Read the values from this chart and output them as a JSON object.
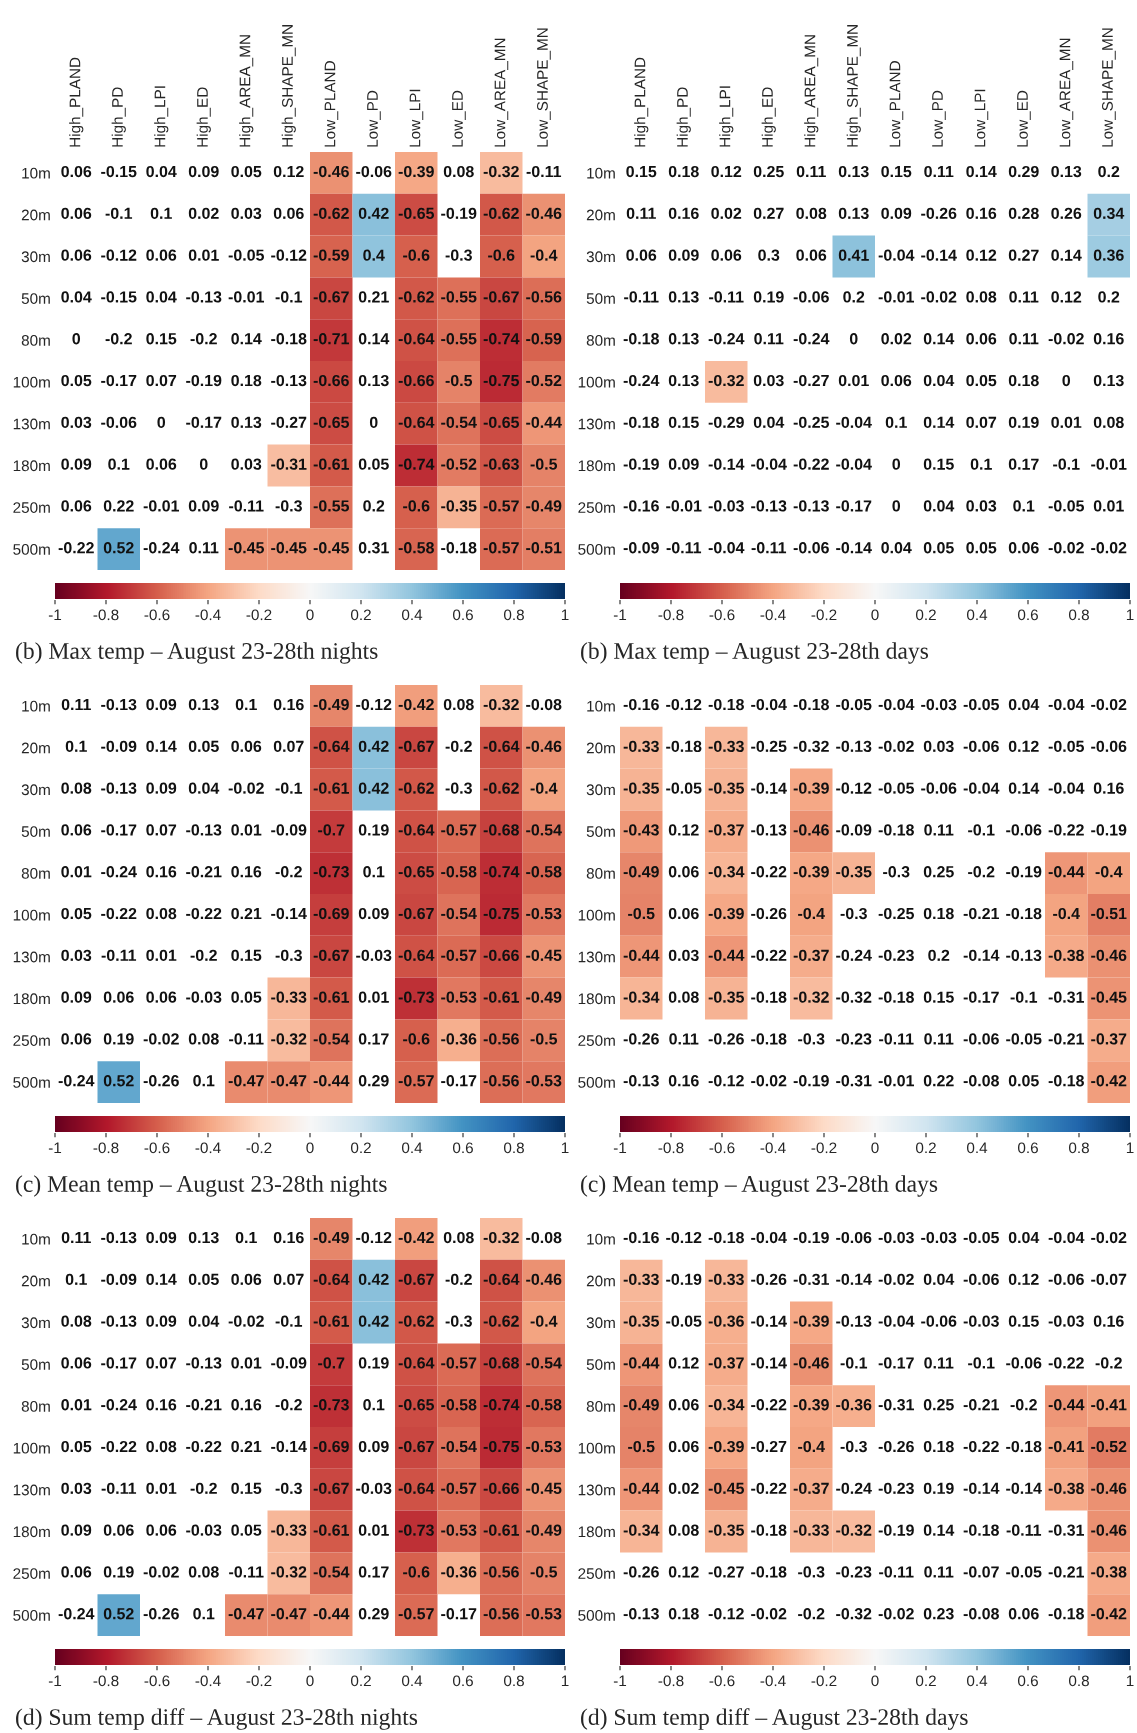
{
  "chart_data": [
    {
      "type": "heatmap",
      "title": "(b) Max temp – August 23-28th nights",
      "categories": [
        "High_PLAND",
        "High_PD",
        "High_LPI",
        "High_ED",
        "High_AREA_MN",
        "High_SHAPE_MN",
        "Low_PLAND",
        "Low_PD",
        "Low_LPI",
        "Low_ED",
        "Low_AREA_MN",
        "Low_SHAPE_MN"
      ],
      "y_categories": [
        "10m",
        "20m",
        "30m",
        "50m",
        "80m",
        "100m",
        "130m",
        "180m",
        "250m",
        "500m"
      ],
      "cells": [
        [
          null,
          null,
          null,
          null,
          null,
          null,
          -0.46,
          null,
          -0.39,
          null,
          -0.32,
          null
        ],
        [
          null,
          null,
          null,
          null,
          null,
          null,
          -0.62,
          0.42,
          -0.65,
          null,
          -0.62,
          -0.46
        ],
        [
          null,
          null,
          null,
          null,
          null,
          null,
          -0.59,
          0.4,
          -0.6,
          null,
          -0.6,
          -0.4
        ],
        [
          null,
          null,
          null,
          null,
          null,
          null,
          -0.67,
          null,
          -0.62,
          -0.55,
          -0.67,
          -0.56
        ],
        [
          null,
          null,
          null,
          null,
          null,
          null,
          -0.71,
          null,
          -0.64,
          -0.55,
          -0.74,
          -0.59
        ],
        [
          null,
          null,
          null,
          null,
          null,
          null,
          -0.66,
          null,
          -0.66,
          -0.5,
          -0.75,
          -0.52
        ],
        [
          null,
          null,
          null,
          null,
          null,
          null,
          -0.65,
          null,
          -0.64,
          -0.54,
          -0.65,
          -0.44
        ],
        [
          null,
          null,
          null,
          null,
          null,
          -0.31,
          -0.61,
          null,
          -0.74,
          -0.52,
          -0.63,
          -0.5
        ],
        [
          null,
          null,
          null,
          null,
          null,
          null,
          -0.55,
          null,
          -0.6,
          -0.35,
          -0.57,
          -0.49
        ],
        [
          null,
          0.52,
          null,
          null,
          -0.45,
          -0.45,
          -0.45,
          null,
          -0.58,
          null,
          -0.57,
          -0.51
        ]
      ],
      "cell_labels": [
        [
          "0.06",
          "-0.15",
          "0.04",
          "0.09",
          "0.05",
          "0.12",
          "-0.46",
          "-0.06",
          "-0.39",
          "0.08",
          "-0.32",
          "-0.11"
        ],
        [
          "0.06",
          "-0.1",
          "0.1",
          "0.02",
          "0.03",
          "0.06",
          "-0.62",
          "0.42",
          "-0.65",
          "-0.19",
          "-0.62",
          "-0.46"
        ],
        [
          "0.06",
          "-0.12",
          "0.06",
          "0.01",
          "-0.05",
          "-0.12",
          "-0.59",
          "0.4",
          "-0.6",
          "-0.3",
          "-0.6",
          "-0.4"
        ],
        [
          "0.04",
          "-0.15",
          "0.04",
          "-0.13",
          "-0.01",
          "-0.1",
          "-0.67",
          "0.21",
          "-0.62",
          "-0.55",
          "-0.67",
          "-0.56"
        ],
        [
          "0",
          "-0.2",
          "0.15",
          "-0.2",
          "0.14",
          "-0.18",
          "-0.71",
          "0.14",
          "-0.64",
          "-0.55",
          "-0.74",
          "-0.59"
        ],
        [
          "0.05",
          "-0.17",
          "0.07",
          "-0.19",
          "0.18",
          "-0.13",
          "-0.66",
          "0.13",
          "-0.66",
          "-0.5",
          "-0.75",
          "-0.52"
        ],
        [
          "0.03",
          "-0.06",
          "0",
          "-0.17",
          "0.13",
          "-0.27",
          "-0.65",
          "0",
          "-0.64",
          "-0.54",
          "-0.65",
          "-0.44"
        ],
        [
          "0.09",
          "0.1",
          "0.06",
          "0",
          "0.03",
          "-0.31",
          "-0.61",
          "0.05",
          "-0.74",
          "-0.52",
          "-0.63",
          "-0.5"
        ],
        [
          "0.06",
          "0.22",
          "-0.01",
          "0.09",
          "-0.11",
          "-0.3",
          "-0.55",
          "0.2",
          "-0.6",
          "-0.35",
          "-0.57",
          "-0.49"
        ],
        [
          "-0.22",
          "0.52",
          "-0.24",
          "0.11",
          "-0.45",
          "-0.45",
          "-0.45",
          "0.31",
          "-0.58",
          "-0.18",
          "-0.57",
          "-0.51"
        ]
      ],
      "clim": [
        -1,
        1
      ],
      "cticks": [
        -1,
        -0.8,
        -0.6,
        -0.4,
        -0.2,
        0,
        0.2,
        0.4,
        0.6,
        0.8,
        1
      ]
    },
    {
      "type": "heatmap",
      "title": "(b) Max temp – August 23-28th days",
      "categories": [
        "High_PLAND",
        "High_PD",
        "High_LPI",
        "High_ED",
        "High_AREA_MN",
        "High_SHAPE_MN",
        "Low_PLAND",
        "Low_PD",
        "Low_LPI",
        "Low_ED",
        "Low_AREA_MN",
        "Low_SHAPE_MN"
      ],
      "y_categories": [
        "10m",
        "20m",
        "30m",
        "50m",
        "80m",
        "100m",
        "130m",
        "180m",
        "250m",
        "500m"
      ],
      "cells": [
        [
          null,
          null,
          null,
          null,
          null,
          null,
          null,
          null,
          null,
          null,
          null,
          null
        ],
        [
          null,
          null,
          null,
          null,
          null,
          null,
          null,
          null,
          null,
          null,
          null,
          0.34
        ],
        [
          null,
          null,
          null,
          null,
          null,
          0.41,
          null,
          null,
          null,
          null,
          null,
          0.36
        ],
        [
          null,
          null,
          null,
          null,
          null,
          null,
          null,
          null,
          null,
          null,
          null,
          null
        ],
        [
          null,
          null,
          null,
          null,
          null,
          null,
          null,
          null,
          null,
          null,
          null,
          null
        ],
        [
          null,
          null,
          -0.32,
          null,
          null,
          null,
          null,
          null,
          null,
          null,
          null,
          null
        ],
        [
          null,
          null,
          null,
          null,
          null,
          null,
          null,
          null,
          null,
          null,
          null,
          null
        ],
        [
          null,
          null,
          null,
          null,
          null,
          null,
          null,
          null,
          null,
          null,
          null,
          null
        ],
        [
          null,
          null,
          null,
          null,
          null,
          null,
          null,
          null,
          null,
          null,
          null,
          null
        ],
        [
          null,
          null,
          null,
          null,
          null,
          null,
          null,
          null,
          null,
          null,
          null,
          null
        ]
      ],
      "cell_labels": [
        [
          "0.15",
          "0.18",
          "0.12",
          "0.25",
          "0.11",
          "0.13",
          "0.15",
          "0.11",
          "0.14",
          "0.29",
          "0.13",
          "0.2"
        ],
        [
          "0.11",
          "0.16",
          "0.02",
          "0.27",
          "0.08",
          "0.13",
          "0.09",
          "-0.26",
          "0.16",
          "0.28",
          "0.26",
          "0.34"
        ],
        [
          "0.06",
          "0.09",
          "0.06",
          "0.3",
          "0.06",
          "0.41",
          "-0.04",
          "-0.14",
          "0.12",
          "0.27",
          "0.14",
          "0.36"
        ],
        [
          "-0.11",
          "0.13",
          "-0.11",
          "0.19",
          "-0.06",
          "0.2",
          "-0.01",
          "-0.02",
          "0.08",
          "0.11",
          "0.12",
          "0.2"
        ],
        [
          "-0.18",
          "0.13",
          "-0.24",
          "0.11",
          "-0.24",
          "0",
          "0.02",
          "0.14",
          "0.06",
          "0.11",
          "-0.02",
          "0.16"
        ],
        [
          "-0.24",
          "0.13",
          "-0.32",
          "0.03",
          "-0.27",
          "0.01",
          "0.06",
          "0.04",
          "0.05",
          "0.18",
          "0",
          "0.13"
        ],
        [
          "-0.18",
          "0.15",
          "-0.29",
          "0.04",
          "-0.25",
          "-0.04",
          "0.1",
          "0.14",
          "0.07",
          "0.19",
          "0.01",
          "0.08"
        ],
        [
          "-0.19",
          "0.09",
          "-0.14",
          "-0.04",
          "-0.22",
          "-0.04",
          "0",
          "0.15",
          "0.1",
          "0.17",
          "-0.1",
          "-0.01"
        ],
        [
          "-0.16",
          "-0.01",
          "-0.03",
          "-0.13",
          "-0.13",
          "-0.17",
          "0",
          "0.04",
          "0.03",
          "0.1",
          "-0.05",
          "0.01"
        ],
        [
          "-0.09",
          "-0.11",
          "-0.04",
          "-0.11",
          "-0.06",
          "-0.14",
          "0.04",
          "0.05",
          "0.05",
          "0.06",
          "-0.02",
          "-0.02"
        ]
      ],
      "clim": [
        -1,
        1
      ],
      "cticks": [
        -1,
        -0.8,
        -0.6,
        -0.4,
        -0.2,
        0,
        0.2,
        0.4,
        0.6,
        0.8,
        1
      ]
    },
    {
      "type": "heatmap",
      "title": "(c) Mean temp – August 23-28th nights",
      "categories": [
        null,
        null,
        null,
        null,
        null,
        null,
        null,
        null,
        null,
        null,
        null,
        null
      ],
      "y_categories": [
        "10m",
        "20m",
        "30m",
        "50m",
        "80m",
        "100m",
        "130m",
        "180m",
        "250m",
        "500m"
      ],
      "cells": [
        [
          null,
          null,
          null,
          null,
          null,
          null,
          -0.49,
          null,
          -0.42,
          null,
          -0.32,
          null
        ],
        [
          null,
          null,
          null,
          null,
          null,
          null,
          -0.64,
          0.42,
          -0.67,
          null,
          -0.64,
          -0.46
        ],
        [
          null,
          null,
          null,
          null,
          null,
          null,
          -0.61,
          0.42,
          -0.62,
          null,
          -0.62,
          -0.4
        ],
        [
          null,
          null,
          null,
          null,
          null,
          null,
          -0.7,
          null,
          -0.64,
          -0.57,
          -0.68,
          -0.54
        ],
        [
          null,
          null,
          null,
          null,
          null,
          null,
          -0.73,
          null,
          -0.65,
          -0.58,
          -0.74,
          -0.58
        ],
        [
          null,
          null,
          null,
          null,
          null,
          null,
          -0.69,
          null,
          -0.67,
          -0.54,
          -0.75,
          -0.53
        ],
        [
          null,
          null,
          null,
          null,
          null,
          null,
          -0.67,
          null,
          -0.64,
          -0.57,
          -0.66,
          -0.45
        ],
        [
          null,
          null,
          null,
          null,
          null,
          -0.33,
          -0.61,
          null,
          -0.73,
          -0.53,
          -0.61,
          -0.49
        ],
        [
          null,
          null,
          null,
          null,
          null,
          -0.32,
          -0.54,
          null,
          -0.6,
          -0.36,
          -0.56,
          -0.5
        ],
        [
          null,
          0.52,
          null,
          null,
          -0.47,
          -0.47,
          -0.44,
          null,
          -0.57,
          null,
          -0.56,
          -0.53
        ]
      ],
      "cell_labels": [
        [
          "0.11",
          "-0.13",
          "0.09",
          "0.13",
          "0.1",
          "0.16",
          "-0.49",
          "-0.12",
          "-0.42",
          "0.08",
          "-0.32",
          "-0.08"
        ],
        [
          "0.1",
          "-0.09",
          "0.14",
          "0.05",
          "0.06",
          "0.07",
          "-0.64",
          "0.42",
          "-0.67",
          "-0.2",
          "-0.64",
          "-0.46"
        ],
        [
          "0.08",
          "-0.13",
          "0.09",
          "0.04",
          "-0.02",
          "-0.1",
          "-0.61",
          "0.42",
          "-0.62",
          "-0.3",
          "-0.62",
          "-0.4"
        ],
        [
          "0.06",
          "-0.17",
          "0.07",
          "-0.13",
          "0.01",
          "-0.09",
          "-0.7",
          "0.19",
          "-0.64",
          "-0.57",
          "-0.68",
          "-0.54"
        ],
        [
          "0.01",
          "-0.24",
          "0.16",
          "-0.21",
          "0.16",
          "-0.2",
          "-0.73",
          "0.1",
          "-0.65",
          "-0.58",
          "-0.74",
          "-0.58"
        ],
        [
          "0.05",
          "-0.22",
          "0.08",
          "-0.22",
          "0.21",
          "-0.14",
          "-0.69",
          "0.09",
          "-0.67",
          "-0.54",
          "-0.75",
          "-0.53"
        ],
        [
          "0.03",
          "-0.11",
          "0.01",
          "-0.2",
          "0.15",
          "-0.3",
          "-0.67",
          "-0.03",
          "-0.64",
          "-0.57",
          "-0.66",
          "-0.45"
        ],
        [
          "0.09",
          "0.06",
          "0.06",
          "-0.03",
          "0.05",
          "-0.33",
          "-0.61",
          "0.01",
          "-0.73",
          "-0.53",
          "-0.61",
          "-0.49"
        ],
        [
          "0.06",
          "0.19",
          "-0.02",
          "0.08",
          "-0.11",
          "-0.32",
          "-0.54",
          "0.17",
          "-0.6",
          "-0.36",
          "-0.56",
          "-0.5"
        ],
        [
          "-0.24",
          "0.52",
          "-0.26",
          "0.1",
          "-0.47",
          "-0.47",
          "-0.44",
          "0.29",
          "-0.57",
          "-0.17",
          "-0.56",
          "-0.53"
        ]
      ],
      "clim": [
        -1,
        1
      ],
      "cticks": [
        -1,
        -0.8,
        -0.6,
        -0.4,
        -0.2,
        0,
        0.2,
        0.4,
        0.6,
        0.8,
        1
      ]
    },
    {
      "type": "heatmap",
      "title": "(c) Mean temp – August 23-28th days",
      "categories": [
        null,
        null,
        null,
        null,
        null,
        null,
        null,
        null,
        null,
        null,
        null,
        null
      ],
      "y_categories": [
        "10m",
        "20m",
        "30m",
        "50m",
        "80m",
        "100m",
        "130m",
        "180m",
        "250m",
        "500m"
      ],
      "cells": [
        [
          null,
          null,
          null,
          null,
          null,
          null,
          null,
          null,
          null,
          null,
          null,
          null
        ],
        [
          -0.33,
          null,
          -0.33,
          null,
          null,
          null,
          null,
          null,
          null,
          null,
          null,
          null
        ],
        [
          -0.35,
          null,
          -0.35,
          null,
          -0.39,
          null,
          null,
          null,
          null,
          null,
          null,
          null
        ],
        [
          -0.43,
          null,
          -0.37,
          null,
          -0.46,
          null,
          null,
          null,
          null,
          null,
          null,
          null
        ],
        [
          -0.49,
          null,
          -0.34,
          null,
          -0.39,
          -0.35,
          null,
          null,
          null,
          null,
          -0.44,
          -0.4
        ],
        [
          -0.5,
          null,
          -0.39,
          null,
          -0.4,
          null,
          null,
          null,
          null,
          null,
          -0.4,
          -0.51
        ],
        [
          -0.44,
          null,
          -0.44,
          null,
          -0.37,
          null,
          null,
          null,
          null,
          null,
          -0.38,
          -0.46
        ],
        [
          -0.34,
          null,
          -0.35,
          null,
          -0.32,
          null,
          null,
          null,
          null,
          null,
          null,
          -0.45
        ],
        [
          null,
          null,
          null,
          null,
          null,
          null,
          null,
          null,
          null,
          null,
          null,
          -0.37
        ],
        [
          null,
          null,
          null,
          null,
          null,
          null,
          null,
          null,
          null,
          null,
          null,
          -0.42
        ]
      ],
      "cell_labels": [
        [
          "-0.16",
          "-0.12",
          "-0.18",
          "-0.04",
          "-0.18",
          "-0.05",
          "-0.04",
          "-0.03",
          "-0.05",
          "0.04",
          "-0.04",
          "-0.02"
        ],
        [
          "-0.33",
          "-0.18",
          "-0.33",
          "-0.25",
          "-0.32",
          "-0.13",
          "-0.02",
          "0.03",
          "-0.06",
          "0.12",
          "-0.05",
          "-0.06"
        ],
        [
          "-0.35",
          "-0.05",
          "-0.35",
          "-0.14",
          "-0.39",
          "-0.12",
          "-0.05",
          "-0.06",
          "-0.04",
          "0.14",
          "-0.04",
          "0.16"
        ],
        [
          "-0.43",
          "0.12",
          "-0.37",
          "-0.13",
          "-0.46",
          "-0.09",
          "-0.18",
          "0.11",
          "-0.1",
          "-0.06",
          "-0.22",
          "-0.19"
        ],
        [
          "-0.49",
          "0.06",
          "-0.34",
          "-0.22",
          "-0.39",
          "-0.35",
          "-0.3",
          "0.25",
          "-0.2",
          "-0.19",
          "-0.44",
          "-0.4"
        ],
        [
          "-0.5",
          "0.06",
          "-0.39",
          "-0.26",
          "-0.4",
          "-0.3",
          "-0.25",
          "0.18",
          "-0.21",
          "-0.18",
          "-0.4",
          "-0.51"
        ],
        [
          "-0.44",
          "0.03",
          "-0.44",
          "-0.22",
          "-0.37",
          "-0.24",
          "-0.23",
          "0.2",
          "-0.14",
          "-0.13",
          "-0.38",
          "-0.46"
        ],
        [
          "-0.34",
          "0.08",
          "-0.35",
          "-0.18",
          "-0.32",
          "-0.32",
          "-0.18",
          "0.15",
          "-0.17",
          "-0.1",
          "-0.31",
          "-0.45"
        ],
        [
          "-0.26",
          "0.11",
          "-0.26",
          "-0.18",
          "-0.3",
          "-0.23",
          "-0.11",
          "0.11",
          "-0.06",
          "-0.05",
          "-0.21",
          "-0.37"
        ],
        [
          "-0.13",
          "0.16",
          "-0.12",
          "-0.02",
          "-0.19",
          "-0.31",
          "-0.01",
          "0.22",
          "-0.08",
          "0.05",
          "-0.18",
          "-0.42"
        ]
      ],
      "clim": [
        -1,
        1
      ],
      "cticks": [
        -1,
        -0.8,
        -0.6,
        -0.4,
        -0.2,
        0,
        0.2,
        0.4,
        0.6,
        0.8,
        1
      ]
    },
    {
      "type": "heatmap",
      "title": "(d) Sum temp diff – August 23-28th nights",
      "categories": [
        null,
        null,
        null,
        null,
        null,
        null,
        null,
        null,
        null,
        null,
        null,
        null
      ],
      "y_categories": [
        "10m",
        "20m",
        "30m",
        "50m",
        "80m",
        "100m",
        "130m",
        "180m",
        "250m",
        "500m"
      ],
      "cells": [
        [
          null,
          null,
          null,
          null,
          null,
          null,
          -0.49,
          null,
          -0.42,
          null,
          -0.32,
          null
        ],
        [
          null,
          null,
          null,
          null,
          null,
          null,
          -0.64,
          0.42,
          -0.67,
          null,
          -0.64,
          -0.46
        ],
        [
          null,
          null,
          null,
          null,
          null,
          null,
          -0.61,
          0.42,
          -0.62,
          null,
          -0.62,
          -0.4
        ],
        [
          null,
          null,
          null,
          null,
          null,
          null,
          -0.7,
          null,
          -0.64,
          -0.57,
          -0.68,
          -0.54
        ],
        [
          null,
          null,
          null,
          null,
          null,
          null,
          -0.73,
          null,
          -0.65,
          -0.58,
          -0.74,
          -0.58
        ],
        [
          null,
          null,
          null,
          null,
          null,
          null,
          -0.69,
          null,
          -0.67,
          -0.54,
          -0.75,
          -0.53
        ],
        [
          null,
          null,
          null,
          null,
          null,
          null,
          -0.67,
          null,
          -0.64,
          -0.57,
          -0.66,
          -0.45
        ],
        [
          null,
          null,
          null,
          null,
          null,
          -0.33,
          -0.61,
          null,
          -0.73,
          -0.53,
          -0.61,
          -0.49
        ],
        [
          null,
          null,
          null,
          null,
          null,
          -0.32,
          -0.54,
          null,
          -0.6,
          -0.36,
          -0.56,
          -0.5
        ],
        [
          null,
          0.52,
          null,
          null,
          -0.47,
          -0.47,
          -0.44,
          null,
          -0.57,
          null,
          -0.56,
          -0.53
        ]
      ],
      "cell_labels": [
        [
          "0.11",
          "-0.13",
          "0.09",
          "0.13",
          "0.1",
          "0.16",
          "-0.49",
          "-0.12",
          "-0.42",
          "0.08",
          "-0.32",
          "-0.08"
        ],
        [
          "0.1",
          "-0.09",
          "0.14",
          "0.05",
          "0.06",
          "0.07",
          "-0.64",
          "0.42",
          "-0.67",
          "-0.2",
          "-0.64",
          "-0.46"
        ],
        [
          "0.08",
          "-0.13",
          "0.09",
          "0.04",
          "-0.02",
          "-0.1",
          "-0.61",
          "0.42",
          "-0.62",
          "-0.3",
          "-0.62",
          "-0.4"
        ],
        [
          "0.06",
          "-0.17",
          "0.07",
          "-0.13",
          "0.01",
          "-0.09",
          "-0.7",
          "0.19",
          "-0.64",
          "-0.57",
          "-0.68",
          "-0.54"
        ],
        [
          "0.01",
          "-0.24",
          "0.16",
          "-0.21",
          "0.16",
          "-0.2",
          "-0.73",
          "0.1",
          "-0.65",
          "-0.58",
          "-0.74",
          "-0.58"
        ],
        [
          "0.05",
          "-0.22",
          "0.08",
          "-0.22",
          "0.21",
          "-0.14",
          "-0.69",
          "0.09",
          "-0.67",
          "-0.54",
          "-0.75",
          "-0.53"
        ],
        [
          "0.03",
          "-0.11",
          "0.01",
          "-0.2",
          "0.15",
          "-0.3",
          "-0.67",
          "-0.03",
          "-0.64",
          "-0.57",
          "-0.66",
          "-0.45"
        ],
        [
          "0.09",
          "0.06",
          "0.06",
          "-0.03",
          "0.05",
          "-0.33",
          "-0.61",
          "0.01",
          "-0.73",
          "-0.53",
          "-0.61",
          "-0.49"
        ],
        [
          "0.06",
          "0.19",
          "-0.02",
          "0.08",
          "-0.11",
          "-0.32",
          "-0.54",
          "0.17",
          "-0.6",
          "-0.36",
          "-0.56",
          "-0.5"
        ],
        [
          "-0.24",
          "0.52",
          "-0.26",
          "0.1",
          "-0.47",
          "-0.47",
          "-0.44",
          "0.29",
          "-0.57",
          "-0.17",
          "-0.56",
          "-0.53"
        ]
      ],
      "clim": [
        -1,
        1
      ],
      "cticks": [
        -1,
        -0.8,
        -0.6,
        -0.4,
        -0.2,
        0,
        0.2,
        0.4,
        0.6,
        0.8,
        1
      ]
    },
    {
      "type": "heatmap",
      "title": "(d) Sum temp diff – August 23-28th days",
      "categories": [
        null,
        null,
        null,
        null,
        null,
        null,
        null,
        null,
        null,
        null,
        null,
        null
      ],
      "y_categories": [
        "10m",
        "20m",
        "30m",
        "50m",
        "80m",
        "100m",
        "130m",
        "180m",
        "250m",
        "500m"
      ],
      "cells": [
        [
          null,
          null,
          null,
          null,
          null,
          null,
          null,
          null,
          null,
          null,
          null,
          null
        ],
        [
          -0.33,
          null,
          -0.33,
          null,
          null,
          null,
          null,
          null,
          null,
          null,
          null,
          null
        ],
        [
          -0.35,
          null,
          -0.36,
          null,
          -0.39,
          null,
          null,
          null,
          null,
          null,
          null,
          null
        ],
        [
          -0.44,
          null,
          -0.37,
          null,
          -0.46,
          null,
          null,
          null,
          null,
          null,
          null,
          null
        ],
        [
          -0.49,
          null,
          -0.34,
          null,
          -0.39,
          -0.36,
          null,
          null,
          null,
          null,
          -0.44,
          -0.41
        ],
        [
          -0.5,
          null,
          -0.39,
          null,
          -0.4,
          null,
          null,
          null,
          null,
          null,
          -0.41,
          -0.52
        ],
        [
          -0.44,
          null,
          -0.45,
          null,
          -0.37,
          null,
          null,
          null,
          null,
          null,
          -0.38,
          -0.46
        ],
        [
          -0.34,
          null,
          -0.35,
          null,
          -0.33,
          -0.32,
          null,
          null,
          null,
          null,
          null,
          -0.46
        ],
        [
          null,
          null,
          null,
          null,
          null,
          null,
          null,
          null,
          null,
          null,
          null,
          -0.38
        ],
        [
          null,
          null,
          null,
          null,
          null,
          null,
          null,
          null,
          null,
          null,
          null,
          -0.42
        ]
      ],
      "cell_labels": [
        [
          "-0.16",
          "-0.12",
          "-0.18",
          "-0.04",
          "-0.19",
          "-0.06",
          "-0.03",
          "-0.03",
          "-0.05",
          "0.04",
          "-0.04",
          "-0.02"
        ],
        [
          "-0.33",
          "-0.19",
          "-0.33",
          "-0.26",
          "-0.31",
          "-0.14",
          "-0.02",
          "0.04",
          "-0.06",
          "0.12",
          "-0.06",
          "-0.07"
        ],
        [
          "-0.35",
          "-0.05",
          "-0.36",
          "-0.14",
          "-0.39",
          "-0.13",
          "-0.04",
          "-0.06",
          "-0.03",
          "0.15",
          "-0.03",
          "0.16"
        ],
        [
          "-0.44",
          "0.12",
          "-0.37",
          "-0.14",
          "-0.46",
          "-0.1",
          "-0.17",
          "0.11",
          "-0.1",
          "-0.06",
          "-0.22",
          "-0.2"
        ],
        [
          "-0.49",
          "0.06",
          "-0.34",
          "-0.22",
          "-0.39",
          "-0.36",
          "-0.31",
          "0.25",
          "-0.21",
          "-0.2",
          "-0.44",
          "-0.41"
        ],
        [
          "-0.5",
          "0.06",
          "-0.39",
          "-0.27",
          "-0.4",
          "-0.3",
          "-0.26",
          "0.18",
          "-0.22",
          "-0.18",
          "-0.41",
          "-0.52"
        ],
        [
          "-0.44",
          "0.02",
          "-0.45",
          "-0.22",
          "-0.37",
          "-0.24",
          "-0.23",
          "0.19",
          "-0.14",
          "-0.14",
          "-0.38",
          "-0.46"
        ],
        [
          "-0.34",
          "0.08",
          "-0.35",
          "-0.18",
          "-0.33",
          "-0.32",
          "-0.19",
          "0.14",
          "-0.18",
          "-0.11",
          "-0.31",
          "-0.46"
        ],
        [
          "-0.26",
          "0.12",
          "-0.27",
          "-0.18",
          "-0.3",
          "-0.23",
          "-0.11",
          "0.11",
          "-0.07",
          "-0.05",
          "-0.21",
          "-0.38"
        ],
        [
          "-0.13",
          "0.18",
          "-0.12",
          "-0.02",
          "-0.2",
          "-0.32",
          "-0.02",
          "0.23",
          "-0.08",
          "0.06",
          "-0.18",
          "-0.42"
        ]
      ],
      "clim": [
        -1,
        1
      ],
      "cticks": [
        -1,
        -0.8,
        -0.6,
        -0.4,
        -0.2,
        0,
        0.2,
        0.4,
        0.6,
        0.8,
        1
      ]
    }
  ]
}
